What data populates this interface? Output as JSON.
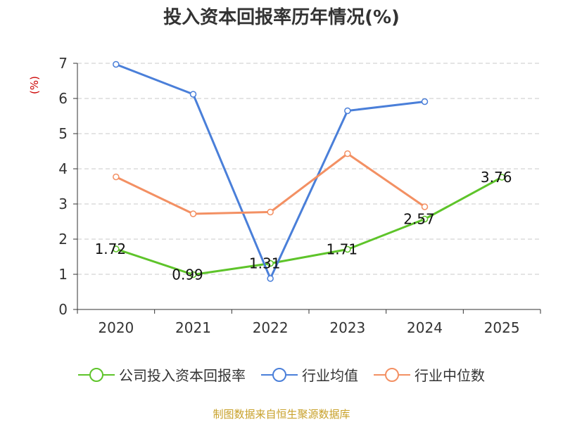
{
  "chart_data": {
    "type": "line",
    "title": "投入资本回报率历年情况(%)",
    "ylabel": "(%)",
    "xlabel": "",
    "ylim": [
      0,
      7
    ],
    "yticks": [
      0,
      1,
      2,
      3,
      4,
      5,
      6,
      7
    ],
    "grid": true,
    "legend_position": "bottom",
    "categories": [
      "2020",
      "2021",
      "2022",
      "2023",
      "2024",
      "2025"
    ],
    "series": [
      {
        "name": "公司投入资本回报率",
        "color": "#5ec42a",
        "values": [
          1.72,
          0.99,
          1.31,
          1.71,
          2.57,
          3.76
        ],
        "labels": [
          "1.72",
          "0.99",
          "1.31",
          "1.71",
          "2.57",
          "3.76"
        ],
        "show_labels": true
      },
      {
        "name": "行业均值",
        "color": "#4a7fd9",
        "values": [
          6.97,
          6.12,
          0.88,
          5.65,
          5.91,
          null
        ],
        "show_labels": false
      },
      {
        "name": "行业中位数",
        "color": "#f39063",
        "values": [
          3.77,
          2.72,
          2.77,
          4.43,
          2.92,
          null
        ],
        "show_labels": false
      }
    ]
  },
  "source": "制图数据来自恒生聚源数据库"
}
